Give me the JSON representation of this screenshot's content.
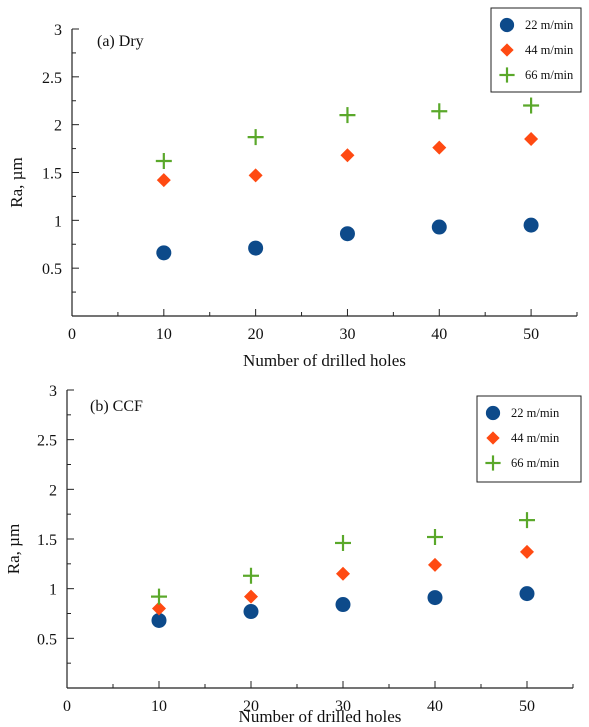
{
  "chart_data": [
    {
      "type": "scatter",
      "panel_label": "(a) Dry",
      "xlabel": "Number of drilled holes",
      "ylabel": "Ra, µm",
      "xlim": [
        0,
        55
      ],
      "ylim": [
        0,
        3
      ],
      "x_ticks": [
        "0",
        "10",
        "20",
        "30",
        "40",
        "50"
      ],
      "y_ticks": [
        "0.5",
        "1",
        "1.5",
        "2",
        "2.5",
        "3"
      ],
      "legend_position": "top-right",
      "x": [
        10,
        20,
        30,
        40,
        50
      ],
      "series": [
        {
          "name": "22 m/min",
          "marker": "circle",
          "color": "#0d4a8a",
          "values": [
            0.66,
            0.71,
            0.86,
            0.93,
            0.95
          ]
        },
        {
          "name": "44 m/min",
          "marker": "diamond",
          "color": "#ff4a12",
          "values": [
            1.42,
            1.47,
            1.68,
            1.76,
            1.85
          ]
        },
        {
          "name": "66 m/min",
          "marker": "plus",
          "color": "#5aa82a",
          "values": [
            1.62,
            1.87,
            2.1,
            2.14,
            2.2
          ]
        }
      ]
    },
    {
      "type": "scatter",
      "panel_label": "(b) CCF",
      "xlabel": "Number of drilled holes",
      "ylabel": "Ra, µm",
      "xlim": [
        0,
        55
      ],
      "ylim": [
        0,
        3
      ],
      "x_ticks": [
        "0",
        "10",
        "20",
        "30",
        "40",
        "50"
      ],
      "y_ticks": [
        "0.5",
        "1",
        "1.5",
        "2",
        "2.5",
        "3"
      ],
      "legend_position": "top-right",
      "x": [
        10,
        20,
        30,
        40,
        50
      ],
      "series": [
        {
          "name": "22 m/min",
          "marker": "circle",
          "color": "#0d4a8a",
          "values": [
            0.68,
            0.77,
            0.84,
            0.91,
            0.95
          ]
        },
        {
          "name": "44 m/min",
          "marker": "diamond",
          "color": "#ff4a12",
          "values": [
            0.8,
            0.92,
            1.15,
            1.24,
            1.37
          ]
        },
        {
          "name": "66 m/min",
          "marker": "plus",
          "color": "#5aa82a",
          "values": [
            0.92,
            1.13,
            1.46,
            1.52,
            1.69
          ]
        }
      ]
    }
  ]
}
